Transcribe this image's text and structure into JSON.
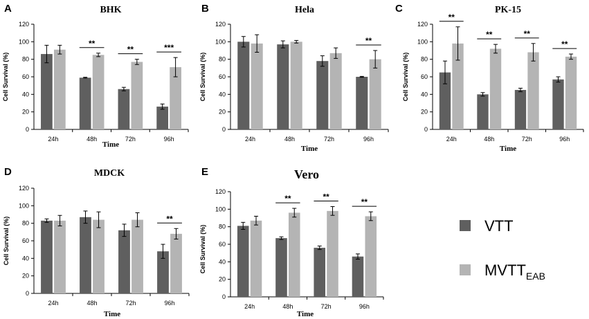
{
  "legend": {
    "series": [
      {
        "name": "VTT",
        "base": "VTT",
        "sub": "",
        "color": "#5f5f5f"
      },
      {
        "name": "MVTT_EAB",
        "base": "MVTT",
        "sub": "EAB",
        "color": "#b4b4b4"
      }
    ]
  },
  "chart_data": [
    {
      "panel": "A",
      "type": "bar",
      "title": "BHK",
      "xlabel": "Time",
      "ylabel": "Cell Survival (%)",
      "ylim": [
        0,
        120
      ],
      "yticks": [
        0,
        20,
        40,
        60,
        80,
        100,
        120
      ],
      "categories": [
        "24h",
        "48h",
        "72h",
        "96h"
      ],
      "series": [
        {
          "name": "VTT",
          "values": [
            86,
            59,
            46,
            26
          ],
          "errors": [
            10,
            0.5,
            2,
            3
          ]
        },
        {
          "name": "MVTT_EAB",
          "values": [
            91,
            85,
            77,
            71
          ],
          "errors": [
            5,
            2,
            3,
            11
          ]
        }
      ],
      "significance": [
        "",
        "**",
        "**",
        "***"
      ]
    },
    {
      "panel": "B",
      "type": "bar",
      "title": "Hela",
      "xlabel": "Time",
      "ylabel": "Cell Survival (%)",
      "ylim": [
        0,
        120
      ],
      "yticks": [
        0,
        20,
        40,
        60,
        80,
        100,
        120
      ],
      "categories": [
        "24h",
        "48h",
        "72h",
        "96h"
      ],
      "series": [
        {
          "name": "VTT",
          "values": [
            100,
            97,
            78,
            60
          ],
          "errors": [
            6,
            4,
            6,
            0.5
          ]
        },
        {
          "name": "MVTT_EAB",
          "values": [
            98,
            100,
            87,
            80
          ],
          "errors": [
            10,
            1.5,
            6,
            10
          ]
        }
      ],
      "significance": [
        "",
        "",
        "",
        "**"
      ]
    },
    {
      "panel": "C",
      "type": "bar",
      "title": "PK-15",
      "xlabel": "Time",
      "ylabel": "Cell Survival (%)",
      "ylim": [
        0,
        120
      ],
      "yticks": [
        0,
        20,
        40,
        60,
        80,
        100,
        120
      ],
      "categories": [
        "24h",
        "48h",
        "72h",
        "96h"
      ],
      "series": [
        {
          "name": "VTT",
          "values": [
            65,
            40,
            45,
            57
          ],
          "errors": [
            13,
            2,
            2,
            3
          ]
        },
        {
          "name": "MVTT_EAB",
          "values": [
            98,
            92,
            88,
            83
          ],
          "errors": [
            19,
            5,
            10,
            3
          ]
        }
      ],
      "significance": [
        "**",
        "**",
        "**",
        "**"
      ]
    },
    {
      "panel": "D",
      "type": "bar",
      "title": "MDCK",
      "xlabel": "Time",
      "ylabel": "Cell Survival (%)",
      "ylim": [
        0,
        120
      ],
      "yticks": [
        0,
        20,
        40,
        60,
        80,
        100,
        120
      ],
      "categories": [
        "24h",
        "48h",
        "72h",
        "96h"
      ],
      "series": [
        {
          "name": "VTT",
          "values": [
            83,
            87,
            72,
            48
          ],
          "errors": [
            2,
            7,
            7,
            8
          ]
        },
        {
          "name": "MVTT_EAB",
          "values": [
            83,
            84,
            84,
            68
          ],
          "errors": [
            6,
            9,
            8,
            6
          ]
        }
      ],
      "significance": [
        "",
        "",
        "",
        "**"
      ]
    },
    {
      "panel": "E",
      "type": "bar",
      "title": "Vero",
      "xlabel": "Time",
      "ylabel": "Cell Survival (%)",
      "ylim": [
        0,
        120
      ],
      "yticks": [
        0,
        20,
        40,
        60,
        80,
        100,
        120
      ],
      "categories": [
        "24h",
        "48h",
        "72h",
        "96h"
      ],
      "series": [
        {
          "name": "VTT",
          "values": [
            81,
            67,
            56,
            46
          ],
          "errors": [
            4,
            1.5,
            2,
            3
          ]
        },
        {
          "name": "MVTT_EAB",
          "values": [
            87,
            96,
            98,
            92
          ],
          "errors": [
            5,
            5,
            5,
            5
          ]
        }
      ],
      "significance": [
        "",
        "**",
        "**",
        "**"
      ]
    }
  ]
}
